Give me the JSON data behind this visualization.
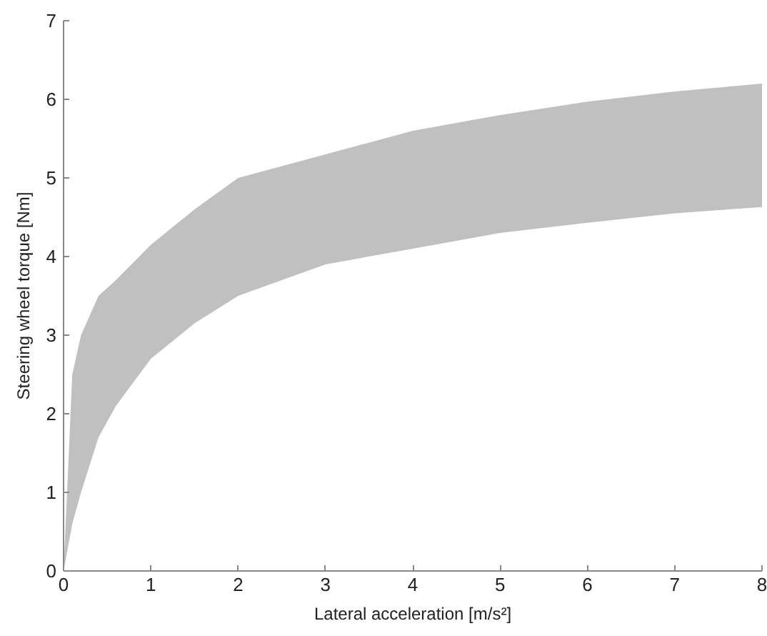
{
  "chart_data": {
    "type": "area",
    "xlabel": "Lateral acceleration [m/s²]",
    "ylabel": "Steering wheel torque [Nm]",
    "x": [
      0,
      0.1,
      0.2,
      0.4,
      0.6,
      1,
      1.5,
      2,
      3,
      4,
      5,
      6,
      7,
      8
    ],
    "series": [
      {
        "color": "#c0c0c0",
        "values": [
          null,
          null,
          null,
          null,
          null,
          null,
          null,
          null,
          null,
          null,
          null,
          null,
          null,
          null
        ],
        "lower": [
          0,
          0.6,
          1.0,
          1.7,
          2.1,
          2.7,
          3.15,
          3.5,
          3.9,
          4.1,
          4.3,
          4.43,
          4.55,
          4.63
        ],
        "upper": [
          0,
          2.5,
          3.0,
          3.5,
          3.7,
          4.15,
          4.6,
          5.0,
          5.3,
          5.6,
          5.8,
          5.97,
          6.1,
          6.2
        ]
      }
    ],
    "xlim": [
      0,
      8
    ],
    "ylim": [
      0,
      7
    ],
    "xticks": [
      0,
      1,
      2,
      3,
      4,
      5,
      6,
      7,
      8
    ],
    "yticks": [
      0,
      1,
      2,
      3,
      4,
      5,
      6,
      7
    ],
    "grid": false
  }
}
